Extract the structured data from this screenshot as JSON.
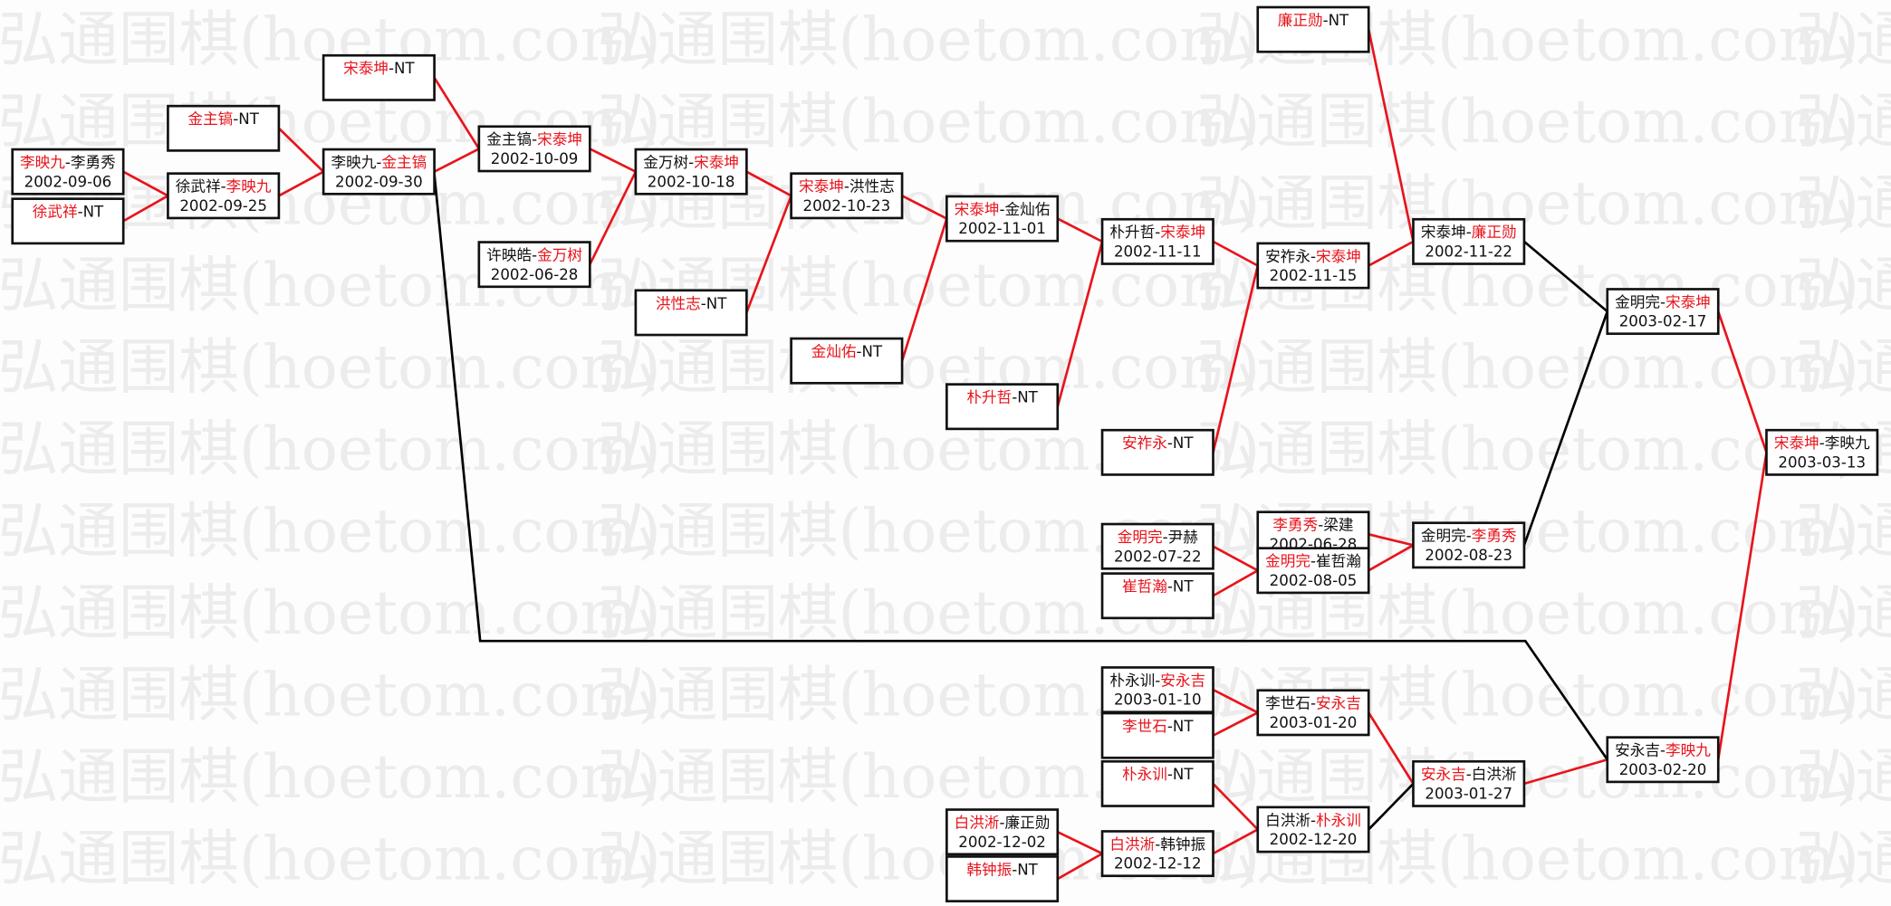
{
  "watermark": "弘通围棋(hoetom.com)",
  "colors": {
    "winner": "#e8141c",
    "text": "#111111",
    "line_red": "#e8141c",
    "line_black": "#000000",
    "watermark": "#ececec"
  },
  "matches": [
    {
      "id": "b1",
      "p1": "李映九",
      "p2": "李勇秀",
      "winner": 1,
      "date": "2002-09-06",
      "to": "b4",
      "line": "#e8141c"
    },
    {
      "id": "b2",
      "p1": "徐武祥",
      "p2": "NT",
      "winner": 1,
      "date": "",
      "to": "b4",
      "line": "#e8141c"
    },
    {
      "id": "b3",
      "p1": "金主镐",
      "p2": "NT",
      "winner": 1,
      "date": "",
      "to": "b6",
      "line": "#e8141c"
    },
    {
      "id": "b4",
      "p1": "徐武祥",
      "p2": "李映九",
      "winner": 2,
      "date": "2002-09-25",
      "to": "b6",
      "line": "#e8141c"
    },
    {
      "id": "b5",
      "p1": "宋泰坤",
      "p2": "NT",
      "winner": 1,
      "date": "",
      "to": "b7",
      "line": "#e8141c"
    },
    {
      "id": "b6",
      "p1": "李映九",
      "p2": "金主镐",
      "winner": 2,
      "date": "2002-09-30",
      "to": "b7",
      "line": "#e8141c"
    },
    {
      "id": "b7",
      "p1": "金主镐",
      "p2": "宋泰坤",
      "winner": 2,
      "date": "2002-10-09",
      "to": "b9",
      "line": "#e8141c"
    },
    {
      "id": "b8",
      "p1": "许映皓",
      "p2": "金万树",
      "winner": 2,
      "date": "2002-06-28",
      "to": "b9",
      "line": "#e8141c"
    },
    {
      "id": "b9",
      "p1": "金万树",
      "p2": "宋泰坤",
      "winner": 2,
      "date": "2002-10-18",
      "to": "b11",
      "line": "#e8141c"
    },
    {
      "id": "b10",
      "p1": "洪性志",
      "p2": "NT",
      "winner": 1,
      "date": "",
      "to": "b11",
      "line": "#e8141c"
    },
    {
      "id": "b11",
      "p1": "宋泰坤",
      "p2": "洪性志",
      "winner": 1,
      "date": "2002-10-23",
      "to": "b13",
      "line": "#e8141c"
    },
    {
      "id": "b12",
      "p1": "金灿佑",
      "p2": "NT",
      "winner": 1,
      "date": "",
      "to": "b13",
      "line": "#e8141c"
    },
    {
      "id": "b13",
      "p1": "宋泰坤",
      "p2": "金灿佑",
      "winner": 1,
      "date": "2002-11-01",
      "to": "b15",
      "line": "#e8141c"
    },
    {
      "id": "b14",
      "p1": "朴升哲",
      "p2": "NT",
      "winner": 1,
      "date": "",
      "to": "b15",
      "line": "#e8141c"
    },
    {
      "id": "b15",
      "p1": "朴升哲",
      "p2": "宋泰坤",
      "winner": 2,
      "date": "2002-11-11",
      "to": "b17",
      "line": "#e8141c"
    },
    {
      "id": "b16",
      "p1": "安祚永",
      "p2": "NT",
      "winner": 1,
      "date": "",
      "to": "b17",
      "line": "#e8141c"
    },
    {
      "id": "b17",
      "p1": "安祚永",
      "p2": "宋泰坤",
      "winner": 2,
      "date": "2002-11-15",
      "to": "b19",
      "line": "#e8141c"
    },
    {
      "id": "b18",
      "p1": "廉正勋",
      "p2": "NT",
      "winner": 1,
      "date": "",
      "to": "b19",
      "line": "#e8141c"
    },
    {
      "id": "b19",
      "p1": "宋泰坤",
      "p2": "廉正勋",
      "winner": 2,
      "date": "2002-11-22",
      "to": "b25",
      "line": "#000000"
    },
    {
      "id": "b20",
      "p1": "李勇秀",
      "p2": "梁建",
      "winner": 1,
      "date": "2002-06-28",
      "to": "b24",
      "line": "#e8141c"
    },
    {
      "id": "b21",
      "p1": "金明完",
      "p2": "尹赫",
      "winner": 1,
      "date": "2002-07-22",
      "to": "b23",
      "line": "#e8141c"
    },
    {
      "id": "b22",
      "p1": "崔哲瀚",
      "p2": "NT",
      "winner": 1,
      "date": "",
      "to": "b23",
      "line": "#e8141c"
    },
    {
      "id": "b23",
      "p1": "金明完",
      "p2": "崔哲瀚",
      "winner": 1,
      "date": "2002-08-05",
      "to": "b24",
      "line": "#e8141c"
    },
    {
      "id": "b24",
      "p1": "金明完",
      "p2": "李勇秀",
      "winner": 2,
      "date": "2002-08-23",
      "to": "b25",
      "line": "#000000"
    },
    {
      "id": "b25",
      "p1": "金明完",
      "p2": "宋泰坤",
      "winner": 2,
      "date": "2003-02-17",
      "to": "b26",
      "line": "#e8141c"
    },
    {
      "id": "b26",
      "p1": "宋泰坤",
      "p2": "李映九",
      "winner": 1,
      "date": "2003-03-13",
      "to": "",
      "line": ""
    },
    {
      "id": "b27",
      "p1": "朴永训",
      "p2": "安永吉",
      "winner": 2,
      "date": "2003-01-10",
      "to": "b29",
      "line": "#e8141c"
    },
    {
      "id": "b28",
      "p1": "李世石",
      "p2": "NT",
      "winner": 1,
      "date": "",
      "to": "b29",
      "line": "#e8141c"
    },
    {
      "id": "b29",
      "p1": "李世石",
      "p2": "安永吉",
      "winner": 2,
      "date": "2003-01-20",
      "to": "b35",
      "line": "#e8141c"
    },
    {
      "id": "b30",
      "p1": "朴永训",
      "p2": "NT",
      "winner": 1,
      "date": "",
      "to": "b34",
      "line": "#e8141c"
    },
    {
      "id": "b31",
      "p1": "白洪淅",
      "p2": "廉正勋",
      "winner": 1,
      "date": "2002-12-02",
      "to": "b33",
      "line": "#e8141c"
    },
    {
      "id": "b32",
      "p1": "韩钟振",
      "p2": "NT",
      "winner": 1,
      "date": "",
      "to": "b33",
      "line": "#e8141c"
    },
    {
      "id": "b33",
      "p1": "白洪淅",
      "p2": "韩钟振",
      "winner": 1,
      "date": "2002-12-12",
      "to": "b34",
      "line": "#e8141c"
    },
    {
      "id": "b34",
      "p1": "白洪淅",
      "p2": "朴永训",
      "winner": 2,
      "date": "2002-12-20",
      "to": "b35",
      "line": "#000000"
    },
    {
      "id": "b35",
      "p1": "安永吉",
      "p2": "白洪淅",
      "winner": 1,
      "date": "2003-01-27",
      "to": "b36",
      "line": "#e8141c"
    },
    {
      "id": "b36",
      "p1": "安永吉",
      "p2": "李映九",
      "winner": 2,
      "date": "2003-02-20",
      "to": "b26",
      "line": "#e8141c"
    }
  ],
  "extra_links": [
    {
      "from": "b6",
      "to": "b36",
      "line": "#000000"
    }
  ]
}
